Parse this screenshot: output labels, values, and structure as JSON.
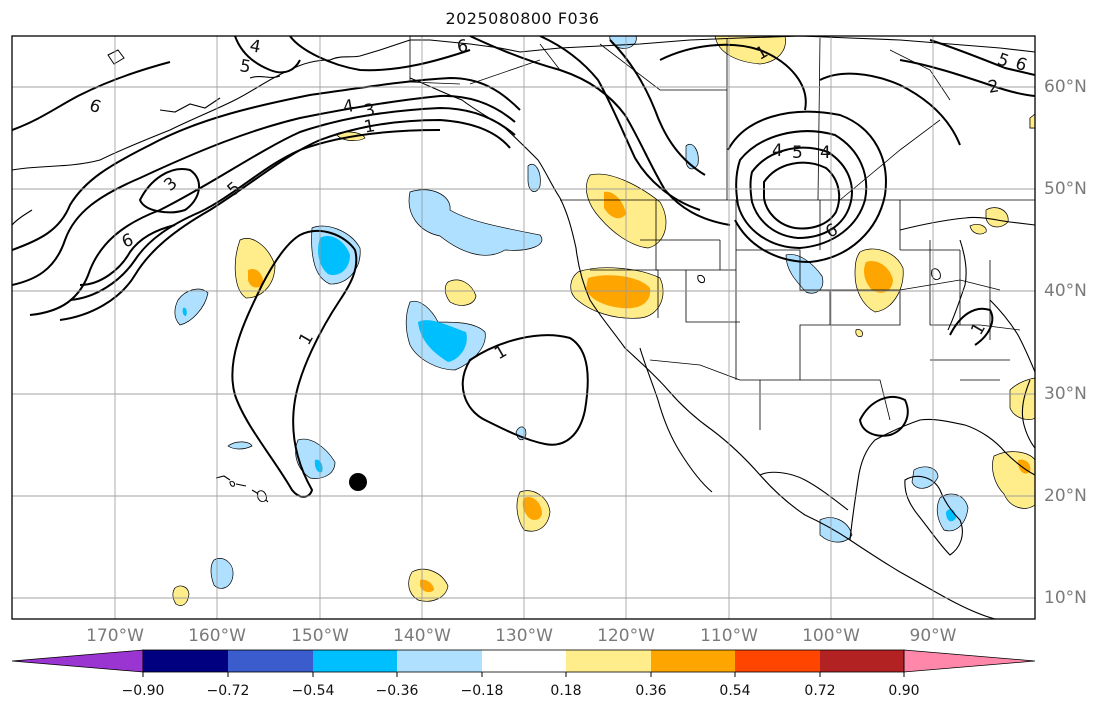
{
  "title": "2025080800 F036",
  "longitude_labels": [
    "170°W",
    "160°W",
    "150°W",
    "140°W",
    "130°W",
    "120°W",
    "110°W",
    "100°W",
    "90°W"
  ],
  "latitude_labels": [
    "60°N",
    "50°N",
    "40°N",
    "30°N",
    "20°N",
    "10°N"
  ],
  "colorbar": {
    "tick_labels": [
      "−0.90",
      "−0.72",
      "−0.54",
      "−0.36",
      "−0.18",
      "0.18",
      "0.36",
      "0.54",
      "0.72",
      "0.90"
    ],
    "colors": [
      "#9a35d1",
      "#000080",
      "#3a5ccc",
      "#00bfff",
      "#afe0ff",
      "#ffffff",
      "#ffec8b",
      "#ffa500",
      "#ff4500",
      "#b22222",
      "#ff88aa"
    ]
  },
  "contour_labels": [
    "6",
    "4",
    "5",
    "4",
    "3",
    "1",
    "3",
    "6",
    "5",
    "1",
    "1",
    "6",
    "2",
    "4",
    "5",
    "6",
    "4",
    "5",
    "6",
    "1",
    "1"
  ]
}
